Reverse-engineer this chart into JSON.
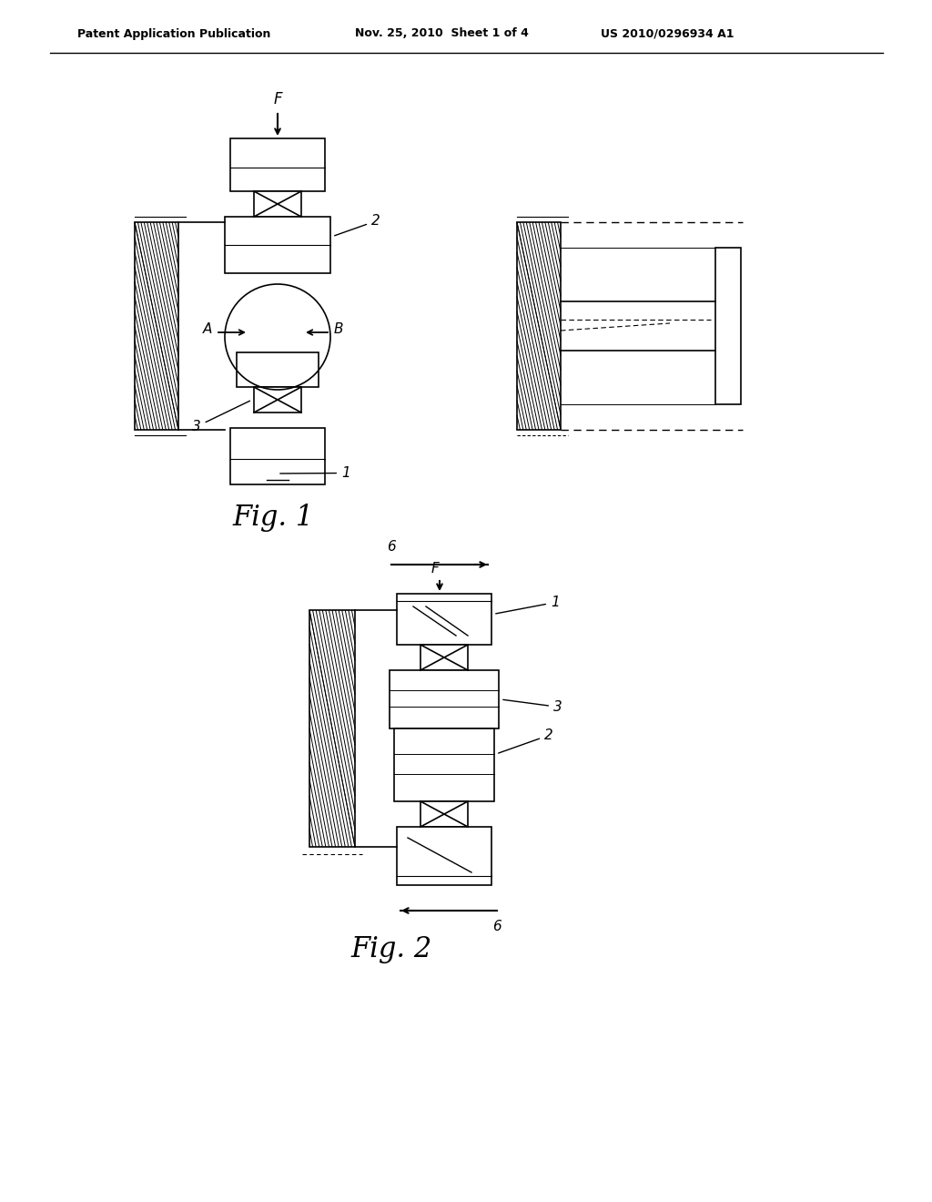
{
  "bg_color": "#ffffff",
  "line_color": "#000000",
  "header_text1": "Patent Application Publication",
  "header_text2": "Nov. 25, 2010  Sheet 1 of 4",
  "header_text3": "US 2010/0296934 A1"
}
